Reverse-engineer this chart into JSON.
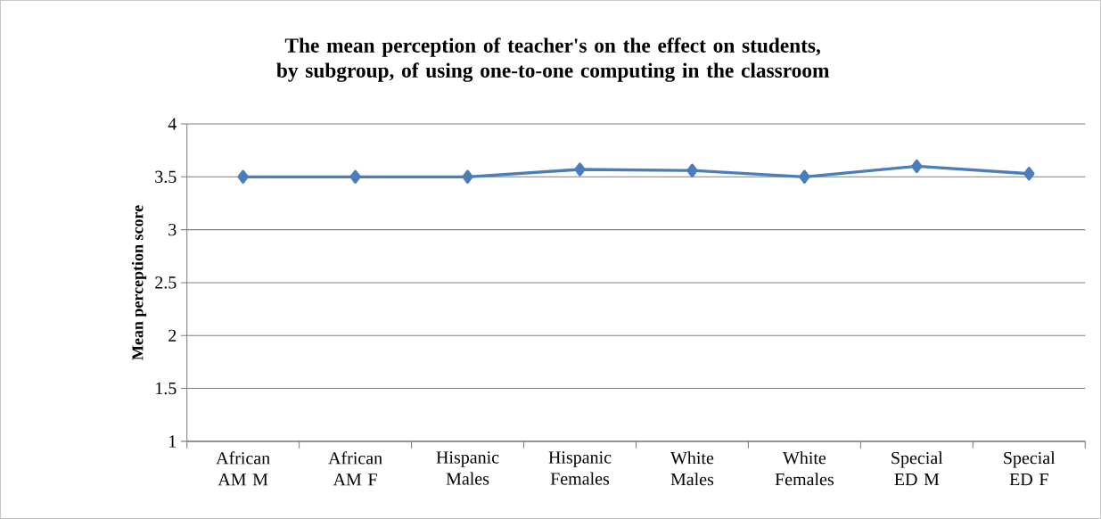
{
  "chart_data": {
    "type": "line",
    "title": "The mean perception of teacher's on the effect on students, by subgroup, of using one-to-one computing in the classroom",
    "ylabel": "Mean perception score",
    "categories": [
      "African AM M",
      "African AM F",
      "Hispanic Males",
      "Hispanic Females",
      "White Males",
      "White Females",
      "Special ED M",
      "Special ED F"
    ],
    "series": [
      {
        "color": "#4a7ebb",
        "values": [
          3.5,
          3.5,
          3.5,
          3.57,
          3.56,
          3.5,
          3.6,
          3.53
        ]
      }
    ],
    "ylim": [
      1,
      4
    ],
    "yticks": [
      1,
      1.5,
      2,
      2.5,
      3,
      3.5,
      4
    ],
    "grid": "y",
    "marker": "diamond",
    "line_style": "solid"
  }
}
